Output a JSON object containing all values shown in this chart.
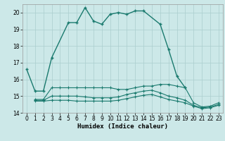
{
  "x": [
    0,
    1,
    2,
    3,
    4,
    5,
    6,
    7,
    8,
    9,
    10,
    11,
    12,
    13,
    14,
    15,
    16,
    17,
    18,
    19,
    20,
    21,
    22,
    23
  ],
  "main_line": {
    "x": [
      0,
      1,
      2,
      3,
      5,
      6,
      7,
      8,
      9,
      10,
      11,
      12,
      13,
      14,
      16,
      17,
      18,
      19
    ],
    "y": [
      16.6,
      15.3,
      15.3,
      17.3,
      19.4,
      19.4,
      20.3,
      19.5,
      19.3,
      19.9,
      20.0,
      19.9,
      20.1,
      20.1,
      19.3,
      17.8,
      16.2,
      15.5
    ]
  },
  "upper_flat": {
    "x": [
      1,
      2,
      3,
      4,
      5,
      6,
      7,
      8,
      9,
      10,
      11,
      12,
      13,
      14,
      15,
      16,
      17,
      18,
      19,
      20,
      21,
      22,
      23
    ],
    "y": [
      14.8,
      14.8,
      15.5,
      15.5,
      15.5,
      15.5,
      15.5,
      15.5,
      15.5,
      15.5,
      15.4,
      15.4,
      15.5,
      15.6,
      15.6,
      15.7,
      15.7,
      15.6,
      15.5,
      14.6,
      14.35,
      14.4,
      14.6
    ]
  },
  "mid_flat": {
    "x": [
      1,
      2,
      3,
      4,
      5,
      6,
      7,
      8,
      9,
      10,
      11,
      12,
      13,
      14,
      15,
      16,
      17,
      18,
      19,
      20,
      21,
      22,
      23
    ],
    "y": [
      14.75,
      14.75,
      15.0,
      15.0,
      15.0,
      15.0,
      14.95,
      14.9,
      14.9,
      14.9,
      14.95,
      15.1,
      15.2,
      15.3,
      15.35,
      15.2,
      15.0,
      14.9,
      14.75,
      14.45,
      14.3,
      14.35,
      14.5
    ]
  },
  "lower_flat": {
    "x": [
      1,
      2,
      3,
      4,
      5,
      6,
      7,
      8,
      9,
      10,
      11,
      12,
      13,
      14,
      15,
      16,
      17,
      18,
      19,
      20,
      21,
      22,
      23
    ],
    "y": [
      14.7,
      14.7,
      14.75,
      14.75,
      14.75,
      14.7,
      14.7,
      14.7,
      14.7,
      14.7,
      14.75,
      14.85,
      14.95,
      15.05,
      15.1,
      14.95,
      14.8,
      14.7,
      14.6,
      14.4,
      14.25,
      14.3,
      14.45
    ]
  },
  "color": "#1a7a6e",
  "bgcolor": "#cce8e8",
  "grid_color": "#aacece",
  "xlabel": "Humidex (Indice chaleur)",
  "ylim": [
    14,
    20.5
  ],
  "xlim": [
    -0.5,
    23.5
  ],
  "yticks": [
    14,
    15,
    16,
    17,
    18,
    19,
    20
  ],
  "xticks": [
    0,
    1,
    2,
    3,
    4,
    5,
    6,
    7,
    8,
    9,
    10,
    11,
    12,
    13,
    14,
    15,
    16,
    17,
    18,
    19,
    20,
    21,
    22,
    23
  ]
}
